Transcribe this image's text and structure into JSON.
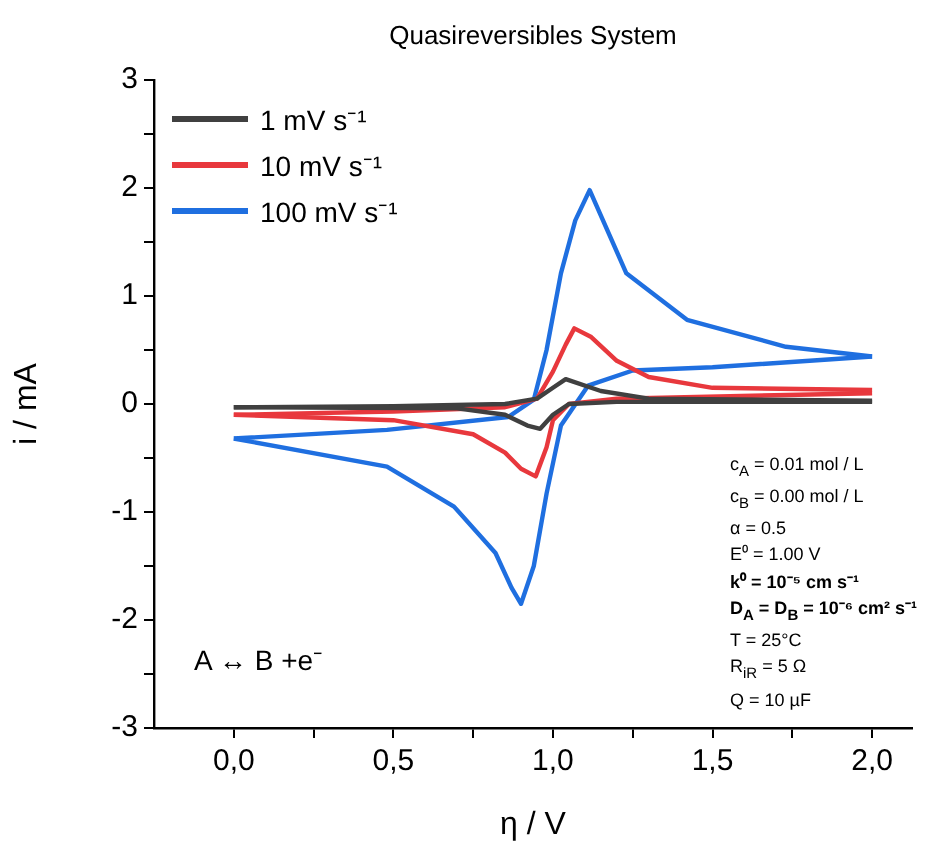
{
  "chart_data": {
    "type": "line",
    "title": "Quasireversibles System",
    "xlabel": "η / V",
    "ylabel": "i / mA",
    "xlim": [
      -0.25,
      2.125
    ],
    "ylim": [
      -3,
      3
    ],
    "xticks": [
      {
        "value": 0,
        "label": "0,0"
      },
      {
        "value": 0.25,
        "label": null
      },
      {
        "value": 0.5,
        "label": "0,5"
      },
      {
        "value": 0.75,
        "label": null
      },
      {
        "value": 1,
        "label": "1,0"
      },
      {
        "value": 1.25,
        "label": null
      },
      {
        "value": 1.5,
        "label": "1,5"
      },
      {
        "value": 1.75,
        "label": null
      },
      {
        "value": 2,
        "label": "2,0"
      }
    ],
    "yticks": [
      -3,
      {
        "value": -2.5,
        "label": null
      },
      -2,
      {
        "value": -1.5,
        "label": null
      },
      -1,
      {
        "value": -0.5,
        "label": null
      },
      0,
      {
        "value": 0.5,
        "label": null
      },
      1,
      {
        "value": 1.5,
        "label": null
      },
      2,
      {
        "value": 2.5,
        "label": null
      },
      3
    ],
    "legend": "top left",
    "series": [
      {
        "name": "1 mV s⁻¹",
        "color": "#404040",
        "x": [
          0,
          0.7,
          0.85,
          0.92,
          0.96,
          1.0,
          1.05,
          1.2,
          2.0
        ],
        "values": [
          -0.03,
          -0.04,
          -0.1,
          -0.2,
          -0.23,
          -0.1,
          0.0,
          0.02,
          0.02
        ]
      },
      {
        "color": "#404040",
        "x": [
          0,
          0.5,
          0.85,
          0.95,
          1.0,
          1.04,
          1.15,
          1.3,
          2.0
        ],
        "values": [
          -0.03,
          -0.02,
          0.0,
          0.05,
          0.15,
          0.23,
          0.12,
          0.05,
          0.03
        ]
      },
      {
        "name": "10 mV s⁻¹",
        "color": "#e8383d",
        "x": [
          0,
          0.5,
          0.75,
          0.85,
          0.9,
          0.946,
          0.98,
          1.0,
          1.05,
          1.2,
          2.0
        ],
        "values": [
          -0.1,
          -0.15,
          -0.28,
          -0.45,
          -0.6,
          -0.67,
          -0.4,
          -0.15,
          0.0,
          0.05,
          0.1
        ]
      },
      {
        "color": "#e8383d",
        "x": [
          0,
          0.5,
          0.85,
          0.95,
          1.0,
          1.04,
          1.067,
          1.12,
          1.2,
          1.3,
          1.5,
          2.0
        ],
        "values": [
          -0.1,
          -0.07,
          -0.03,
          0.05,
          0.3,
          0.55,
          0.7,
          0.62,
          0.4,
          0.25,
          0.15,
          0.13
        ]
      },
      {
        "name": "100 mV s⁻¹",
        "color": "#1f6fe0",
        "x": [
          0,
          0.48,
          0.69,
          0.82,
          0.87,
          0.9,
          0.94,
          0.98,
          1.025,
          1.11,
          1.25,
          1.5,
          2.0
        ],
        "values": [
          -0.32,
          -0.58,
          -0.95,
          -1.38,
          -1.7,
          -1.85,
          -1.5,
          -0.83,
          -0.2,
          0.17,
          0.31,
          0.34,
          0.44
        ]
      },
      {
        "color": "#1f6fe0",
        "x": [
          0,
          0.48,
          0.86,
          0.94,
          0.98,
          1.025,
          1.07,
          1.115,
          1.23,
          1.42,
          1.73,
          2.0
        ],
        "values": [
          -0.32,
          -0.24,
          -0.12,
          0.04,
          0.5,
          1.21,
          1.7,
          1.98,
          1.21,
          0.78,
          0.53,
          0.44
        ]
      }
    ],
    "annotations": [
      "c$_{A}$ = 0.01 mol / L",
      "c$_{B}$ = 0.00 mol / L",
      "α = 0.5",
      "E⁰ = 1.00 V",
      "k⁰ = 10⁻⁵ cm s⁻¹",
      "D$_{A}$ = D$_{B}$ = 10⁻⁶ cm² s⁻¹",
      "T = 25°C",
      "R$_{iR}$ = 5 Ω",
      "Q = 10 µF",
      "A ↔ B +e⁻"
    ]
  }
}
